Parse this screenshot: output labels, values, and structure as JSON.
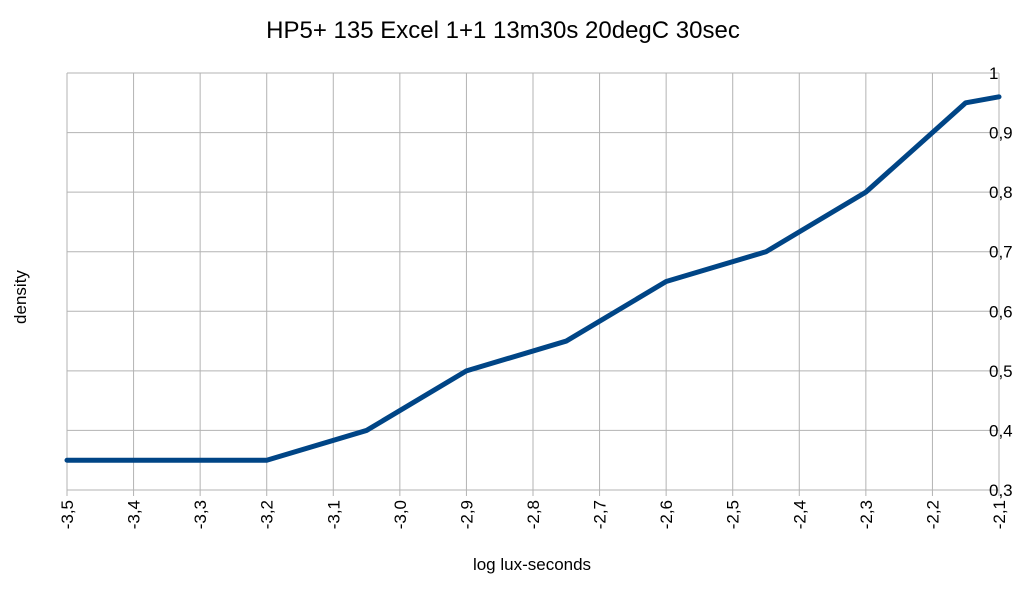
{
  "chart_data": {
    "type": "line",
    "title": "HP5+ 135 Excel 1+1 13m30s 20degC 30sec",
    "xlabel": "log lux-seconds",
    "ylabel": "density",
    "xlim": [
      -3.5,
      -2.1
    ],
    "ylim": [
      0.3,
      1.0
    ],
    "x_ticks": [
      -3.5,
      -3.4,
      -3.3,
      -3.2,
      -3.1,
      -3.0,
      -2.9,
      -2.8,
      -2.7,
      -2.6,
      -2.5,
      -2.4,
      -2.3,
      -2.2,
      -2.1
    ],
    "x_tick_labels": [
      "-3,5",
      "-3,4",
      "-3,3",
      "-3,2",
      "-3,1",
      "-3,0",
      "-2,9",
      "-2,8",
      "-2,7",
      "-2,6",
      "-2,5",
      "-2,4",
      "-2,3",
      "-2,2",
      "-2,1"
    ],
    "y_ticks": [
      0.3,
      0.4,
      0.5,
      0.6,
      0.7,
      0.8,
      0.9,
      1.0
    ],
    "y_tick_labels": [
      "0,3",
      "0,4",
      "0,5",
      "0,6",
      "0,7",
      "0,8",
      "0,9",
      "1"
    ],
    "y_axis_position": "right",
    "grid": true,
    "legend": "none",
    "series": [
      {
        "color": "#004586",
        "x": [
          -3.5,
          -3.2,
          -3.05,
          -2.9,
          -2.75,
          -2.6,
          -2.45,
          -2.3,
          -2.15,
          -2.1
        ],
        "y": [
          0.35,
          0.35,
          0.4,
          0.5,
          0.55,
          0.65,
          0.7,
          0.8,
          0.95,
          0.96
        ]
      }
    ]
  }
}
